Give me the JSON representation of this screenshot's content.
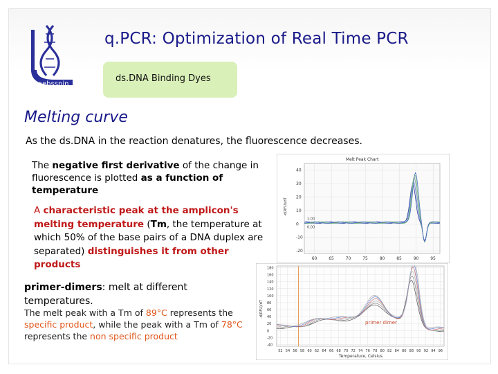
{
  "slide": {
    "logo_text": "aehsspin",
    "title": "q.PCR: Optimization of Real Time PCR",
    "subtitle": "ds.DNA Binding Dyes",
    "section_heading": "Melting curve",
    "intro": "As the ds.DNA in the reaction denatures, the fluorescence decreases.",
    "para2": {
      "t1": "The ",
      "b1": "negative first derivative",
      "t2": " of the change in fluorescence is plotted ",
      "b2": "as a function of temperature"
    },
    "para3": {
      "r1": "A ",
      "b1": "characteristic peak at the amplicon's melting temperature",
      "t1": " (",
      "tm": "Tm",
      "t2": ", the temperature at which 50% of the base pairs of a DNA duplex are separated) ",
      "b2": "distinguishes it from other products"
    },
    "para4": {
      "b1": "primer-dimers",
      "t1": ": melt at different temperatures."
    },
    "para5": {
      "t1": "The melt peak with a Tm of ",
      "v1": "89°C",
      "t2": " represents the ",
      "r1": "specific product",
      "t3": ", while the peak with a Tm of ",
      "v2": "78°C",
      "t4": " represents the ",
      "r2": "non specific product"
    }
  },
  "chart_data": [
    {
      "type": "line",
      "title": "Melt Peak Chart",
      "ylabel": "-d(RFU)/dT",
      "x_ticks": [
        "60",
        "65",
        "70",
        "75",
        "80",
        "85",
        "90",
        "95"
      ],
      "y_ticks": [
        "40",
        "30",
        "20",
        "10",
        "0",
        "-10",
        "-20"
      ],
      "xlim": [
        57,
        97
      ],
      "ylim": [
        -22,
        45
      ],
      "annotations": [
        "1.00",
        "0.00"
      ],
      "series_colors": [
        "#2a3a9a",
        "#6a8ad8",
        "#8aa0a8",
        "#6ac070",
        "#4a6ac0"
      ],
      "peak_x": 89,
      "peak_y": 34
    },
    {
      "type": "line",
      "xlabel": "Temperature, Celsius",
      "ylabel": "-d(RFU)/dT",
      "x_ticks": [
        "52",
        "54",
        "56",
        "58",
        "60",
        "62",
        "64",
        "66",
        "68",
        "70",
        "72",
        "74",
        "76",
        "78",
        "80",
        "82",
        "84",
        "86",
        "88",
        "90",
        "92",
        "94",
        "96"
      ],
      "y_ticks": [
        "180",
        "160",
        "140",
        "120",
        "100",
        "80",
        "60",
        "40",
        "20",
        "0",
        "-20",
        "-40"
      ],
      "xlim": [
        51,
        97
      ],
      "ylim": [
        -45,
        185
      ],
      "annotation": "primer dimer",
      "vline_x": 57,
      "series_colors": [
        "#555555",
        "#8a8a8a",
        "#b0b0b0",
        "#c26a6a",
        "#6a8ad8",
        "#aaaaaa"
      ],
      "peak_x": 88,
      "peak_y": 150,
      "shoulder_x": 78,
      "shoulder_y": 58
    }
  ]
}
